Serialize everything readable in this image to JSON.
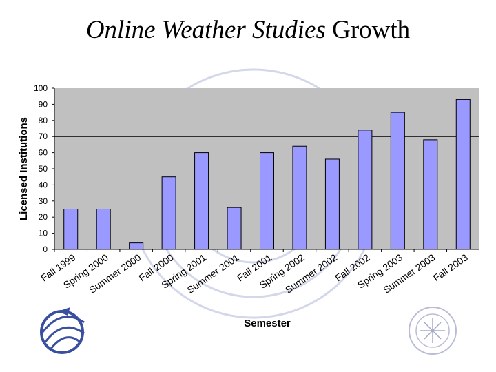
{
  "title": {
    "italic_part": "Online Weather Studies",
    "plain_part": "Growth"
  },
  "chart_data": {
    "type": "bar",
    "categories": [
      "Fall 1999",
      "Spring 2000",
      "Summer 2000",
      "Fall 2000",
      "Spring 2001",
      "Summer 2001",
      "Fall 2001",
      "Spring 2002",
      "Summer 2002",
      "Fall 2002",
      "Spring 2003",
      "Summer 2003",
      "Fall 2003"
    ],
    "values": [
      25,
      25,
      4,
      45,
      60,
      26,
      60,
      64,
      56,
      74,
      85,
      68,
      93
    ],
    "xlabel": "Semester",
    "ylabel": "Licensed Institutions",
    "ylim": [
      0,
      100
    ],
    "yticks": [
      0,
      10,
      20,
      30,
      40,
      50,
      60,
      70,
      80,
      90,
      100
    ],
    "reference_line": 70,
    "grid": false,
    "plot_background": "#c0c0c0",
    "bar_color": "#9999ff",
    "bar_edge_color": "#000000"
  },
  "decor": {
    "watermark_icon": "society-seal-icon",
    "logo_left_icon": "globe-logo-icon",
    "logo_right_icon": "science-foundation-logo-icon",
    "watermark_color": "#c8cde6"
  }
}
